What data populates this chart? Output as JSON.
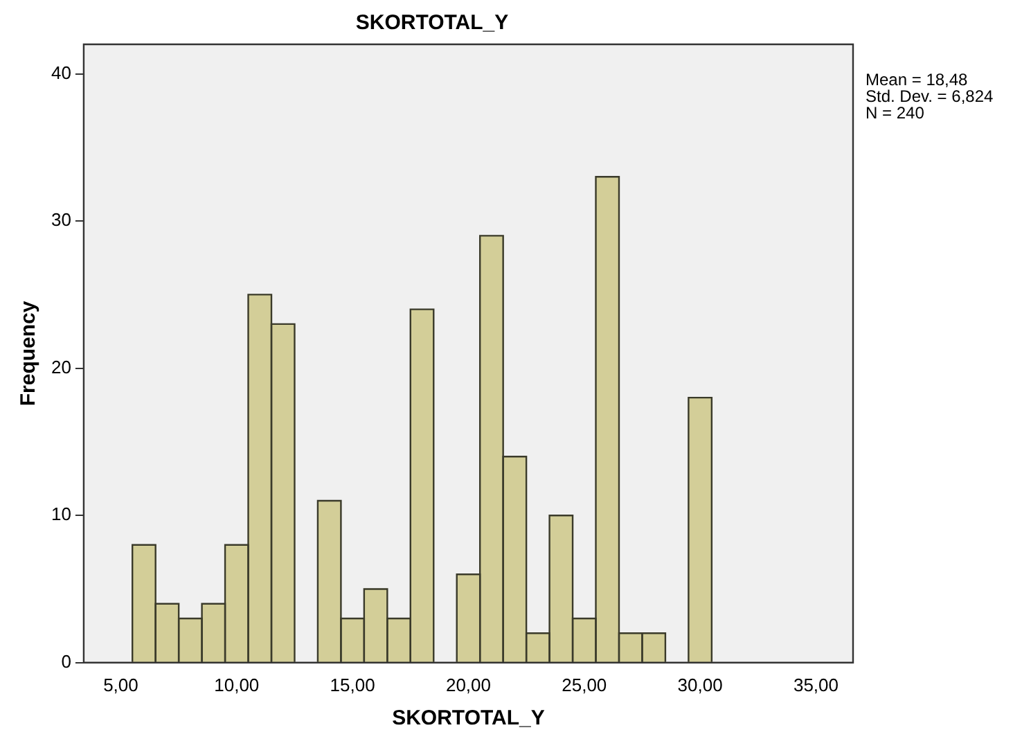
{
  "chart_data": {
    "type": "histogram",
    "title": "SKORTOTAL_Y",
    "xlabel": "SKORTOTAL_Y",
    "ylabel": "Frequency",
    "bins": [
      5.5,
      6.5,
      7.5,
      8.5,
      9.5,
      10.5,
      11.5,
      12.5,
      13.5,
      14.5,
      15.5,
      16.5,
      17.5,
      18.5,
      19.5,
      20.5,
      21.5,
      22.5,
      23.5,
      24.5,
      25.5,
      26.5,
      27.5,
      28.5,
      29.5,
      30.5
    ],
    "values": [
      8,
      4,
      3,
      4,
      8,
      25,
      23,
      0,
      11,
      3,
      5,
      3,
      24,
      0,
      6,
      29,
      14,
      2,
      10,
      3,
      33,
      2,
      2,
      0,
      18
    ],
    "color": "#d3ce98",
    "xlim": [
      3.4,
      36.6
    ],
    "xticks": [
      {
        "value": 5,
        "label": "5,00"
      },
      {
        "value": 10,
        "label": "10,00"
      },
      {
        "value": 15,
        "label": "15,00"
      },
      {
        "value": 20,
        "label": "20,00"
      },
      {
        "value": 25,
        "label": "25,00"
      },
      {
        "value": 30,
        "label": "30,00"
      },
      {
        "value": 35,
        "label": "35,00"
      }
    ],
    "ylim": [
      0,
      42
    ],
    "yticks": [
      0,
      10,
      20,
      30,
      40
    ],
    "grid": false,
    "legend": false,
    "annotations": [
      "Mean = 18,48",
      "Std. Dev. = 6,824",
      "N = 240"
    ]
  }
}
